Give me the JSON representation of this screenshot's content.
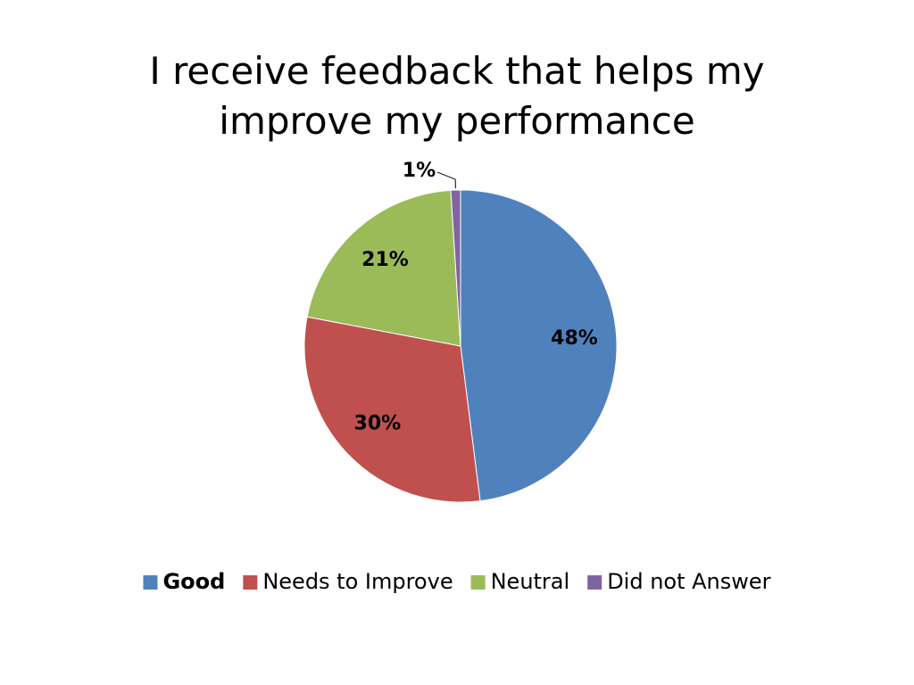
{
  "chart_data": {
    "type": "pie",
    "title": "I receive feedback that helps my improve my performance",
    "categories": [
      "Good",
      "Needs to Improve",
      "Neutral",
      "Did not Answer"
    ],
    "values": [
      48,
      30,
      21,
      1
    ],
    "value_labels": [
      "48%",
      "30%",
      "21%",
      "1%"
    ],
    "colors": [
      "#4f81bd",
      "#c0504d",
      "#9bbb59",
      "#8064a2"
    ],
    "legend": "bottom"
  }
}
